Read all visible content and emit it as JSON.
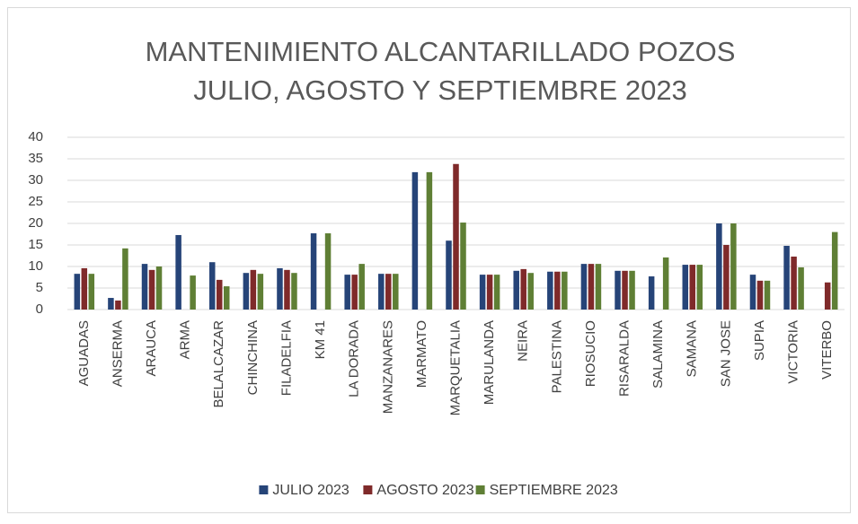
{
  "chart_data": {
    "type": "bar",
    "title": [
      "MANTENIMIENTO ALCANTARILLADO POZOS",
      "JULIO, AGOSTO Y SEPTIEMBRE 2023"
    ],
    "categories": [
      "AGUADAS",
      "ANSERMA",
      "ARAUCA",
      "ARMA",
      "BELALCAZAR",
      "CHINCHINA",
      "FILADELFIA",
      "KM 41",
      "LA DORADA",
      "MANZANARES",
      "MARMATO",
      "MARQUETALIA",
      "MARULANDA",
      "NEIRA",
      "PALESTINA",
      "RIOSUCIO",
      "RISARALDA",
      "SALAMINA",
      "SAMANA",
      "SAN JOSE",
      "SUPIA",
      "VICTORIA",
      "VITERBO"
    ],
    "series": [
      {
        "name": "JULIO 2023",
        "color": "#264478",
        "values": [
          8.3,
          2.7,
          10.6,
          17.3,
          11,
          8.5,
          9.6,
          17.7,
          8.1,
          8.3,
          31.9,
          16,
          8.1,
          9,
          8.8,
          10.6,
          9,
          7.7,
          10.4,
          20,
          8.1,
          14.8,
          null
        ]
      },
      {
        "name": "AGOSTO 2023",
        "color": "#7f2a2a",
        "values": [
          9.6,
          2.1,
          9.2,
          null,
          6.9,
          9.2,
          9.2,
          null,
          8.1,
          8.3,
          null,
          33.8,
          8.1,
          9.4,
          8.8,
          10.6,
          9,
          null,
          10.4,
          15,
          6.7,
          12.3,
          6.3
        ]
      },
      {
        "name": "SEPTIEMBRE 2023",
        "color": "#5f7f35",
        "values": [
          8.3,
          14.2,
          10,
          7.9,
          5.4,
          8.3,
          8.5,
          17.7,
          10.6,
          8.3,
          31.9,
          20.2,
          8.1,
          8.5,
          8.8,
          10.6,
          9,
          12.1,
          10.4,
          20,
          6.7,
          9.8,
          18
        ]
      }
    ],
    "ylim": [
      0,
      40
    ],
    "yticks": [
      0,
      5,
      10,
      15,
      20,
      25,
      30,
      35,
      40
    ],
    "grid": true,
    "legend": "bottom"
  }
}
